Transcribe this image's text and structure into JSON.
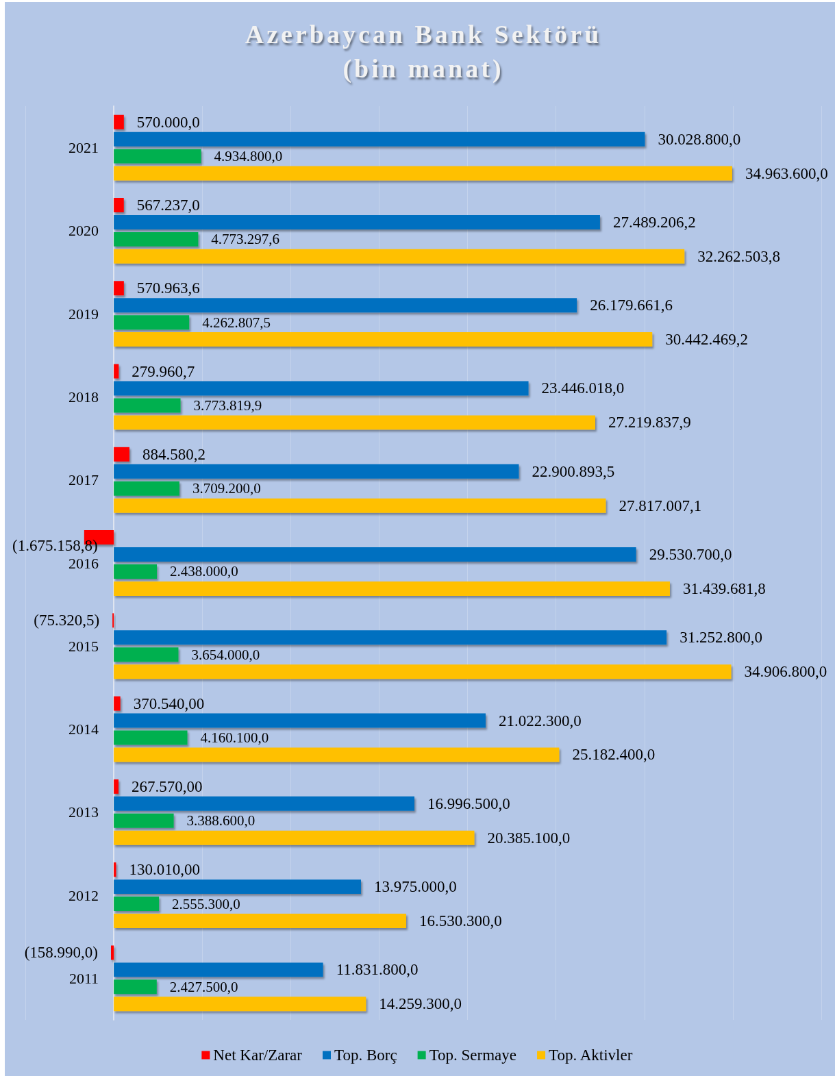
{
  "chart_data": {
    "type": "bar",
    "orientation": "horizontal",
    "title": "Azerbaycan Bank Sektörü",
    "subtitle": "(bin manat)",
    "categories": [
      "2021",
      "2020",
      "2019",
      "2018",
      "2017",
      "2016",
      "2015",
      "2014",
      "2013",
      "2012",
      "2011"
    ],
    "series": [
      {
        "name": "Net Kar/Zarar",
        "color": "#ff0000",
        "values": [
          570000.0,
          567237.0,
          570963.6,
          279960.7,
          884580.2,
          -1675158.8,
          -75320.5,
          370540.0,
          267570.0,
          130010.0,
          -158990.0
        ],
        "value_labels": [
          "570.000,0",
          "567.237,0",
          "570.963,6",
          "279.960,7",
          "884.580,2",
          "(1.675.158,8)",
          "(75.320,5)",
          "370.540,00",
          "267.570,00",
          "130.010,00",
          "(158.990,0)"
        ]
      },
      {
        "name": "Top. Borç",
        "color": "#0070c0",
        "values": [
          30028800.0,
          27489206.2,
          26179661.6,
          23446018.0,
          22900893.5,
          29530700.0,
          31252800.0,
          21022300.0,
          16996500.0,
          13975000.0,
          11831800.0
        ],
        "value_labels": [
          "30.028.800,0",
          "27.489.206,2",
          "26.179.661,6",
          "23.446.018,0",
          "22.900.893,5",
          "29.530.700,0",
          "31.252.800,0",
          "21.022.300,0",
          "16.996.500,0",
          "13.975.000,0",
          "11.831.800,0"
        ]
      },
      {
        "name": "Top. Sermaye",
        "color": "#00b050",
        "values": [
          4934800.0,
          4773297.6,
          4262807.5,
          3773819.9,
          3709200.0,
          2438000.0,
          3654000.0,
          4160100.0,
          3388600.0,
          2555300.0,
          2427500.0
        ],
        "value_labels": [
          "4.934.800,0",
          "4.773.297,6",
          "4.262.807,5",
          "3.773.819,9",
          "3.709.200,0",
          "2.438.000,0",
          "3.654.000,0",
          "4.160.100,0",
          "3.388.600,0",
          "2.555.300,0",
          "2.427.500,0"
        ]
      },
      {
        "name": "Top. Aktivler",
        "color": "#ffc000",
        "values": [
          34963600.0,
          32262503.8,
          30442469.2,
          27219837.9,
          27817007.1,
          31439681.8,
          34906800.0,
          25182400.0,
          20385100.0,
          16530300.0,
          14259300.0
        ],
        "value_labels": [
          "34.963.600,0",
          "32.262.503,8",
          "30.442.469,2",
          "27.219.837,9",
          "27.817.007,1",
          "31.439.681,8",
          "34.906.800,0",
          "25.182.400,0",
          "20.385.100,0",
          "16.530.300,0",
          "14.259.300,0"
        ]
      }
    ],
    "xlim": [
      -5000000,
      40000000
    ],
    "xticks": [
      {
        "value": -5000000,
        "label": null
      },
      {
        "value": 0,
        "label": null
      },
      {
        "value": 5000000,
        "label": null
      },
      {
        "value": 10000000,
        "label": null
      },
      {
        "value": 15000000,
        "label": null
      },
      {
        "value": 20000000,
        "label": null
      },
      {
        "value": 25000000,
        "label": null
      },
      {
        "value": 30000000,
        "label": null
      },
      {
        "value": 35000000,
        "label": null
      },
      {
        "value": 40000000,
        "label": null
      }
    ],
    "grid": "x",
    "legend": "bottom",
    "tick_labels": "y"
  }
}
